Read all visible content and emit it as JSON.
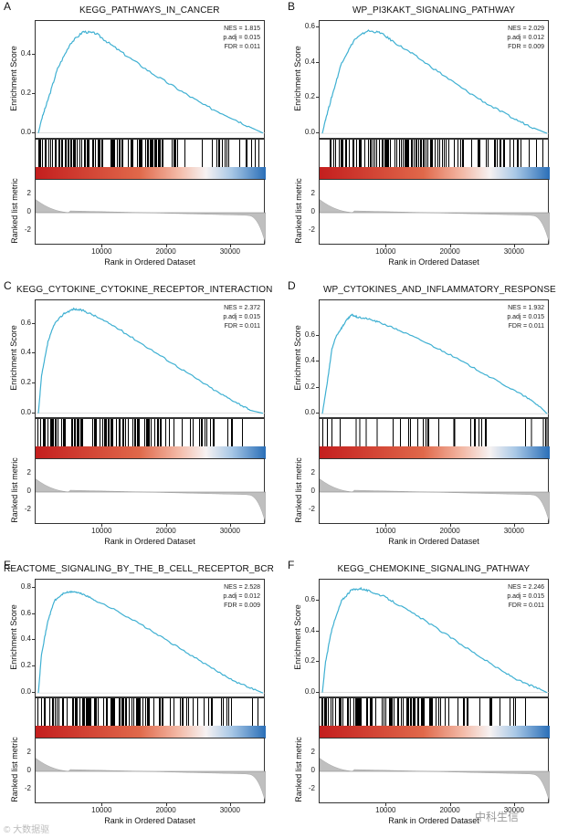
{
  "chart_data": [
    {
      "type": "line",
      "panel": "A",
      "title": "KEGG_PATHWAYS_IN_CANCER",
      "ylabel": "Enrichment Score",
      "ylabel2": "Ranked list metric",
      "xlabel": "Rank in Ordered Dataset",
      "yticks": [
        "0.0",
        "0.2",
        "0.4"
      ],
      "ylim": [
        -0.02,
        0.56
      ],
      "metric_ticks": [
        "2",
        "0",
        "-2"
      ],
      "xticks": [
        "10000",
        "20000",
        "30000"
      ],
      "xlim": [
        0,
        35000
      ],
      "stats": {
        "nes": "NES = 1.815",
        "padj": "p.adj = 0.015",
        "fdr": "FDR = 0.011"
      },
      "x": [
        0,
        500,
        1500,
        3000,
        5000,
        7000,
        9000,
        11000,
        14000,
        18000,
        22000,
        26000,
        30000,
        33000,
        35000
      ],
      "values": [
        0.0,
        0.07,
        0.17,
        0.33,
        0.46,
        0.52,
        0.51,
        0.46,
        0.39,
        0.3,
        0.22,
        0.14,
        0.08,
        0.03,
        0.0
      ],
      "hit_density": 0.75,
      "series_color": "#3fb0d2"
    },
    {
      "type": "line",
      "panel": "B",
      "title": "WP_PI3KAKT_SIGNALING_PATHWAY",
      "ylabel": "Enrichment Score",
      "ylabel2": "Ranked list metric",
      "xlabel": "Rank in Ordered Dataset",
      "yticks": [
        "0.0",
        "0.2",
        "0.4",
        "0.6"
      ],
      "ylim": [
        -0.02,
        0.62
      ],
      "metric_ticks": [
        "2",
        "0",
        "-2"
      ],
      "xticks": [
        "10000",
        "20000",
        "30000"
      ],
      "xlim": [
        0,
        35000
      ],
      "stats": {
        "nes": "NES = 2.029",
        "padj": "p.adj = 0.012",
        "fdr": "FDR = 0.009"
      },
      "x": [
        0,
        500,
        1500,
        3000,
        5000,
        7000,
        9000,
        11000,
        14000,
        18000,
        22000,
        26000,
        30000,
        33000,
        35000
      ],
      "values": [
        0.0,
        0.08,
        0.21,
        0.4,
        0.53,
        0.58,
        0.57,
        0.52,
        0.45,
        0.35,
        0.25,
        0.16,
        0.08,
        0.03,
        0.0
      ],
      "hit_density": 0.72,
      "series_color": "#3fb0d2"
    },
    {
      "type": "line",
      "panel": "C",
      "title": "KEGG_CYTOKINE_CYTOKINE_RECEPTOR_INTERACTION",
      "ylabel": "Enrichment Score",
      "ylabel2": "Ranked list metric",
      "xlabel": "Rank in Ordered Dataset",
      "yticks": [
        "0.0",
        "0.2",
        "0.4",
        "0.6"
      ],
      "ylim": [
        -0.02,
        0.74
      ],
      "metric_ticks": [
        "2",
        "0",
        "-2"
      ],
      "xticks": [
        "10000",
        "20000",
        "30000"
      ],
      "xlim": [
        0,
        35000
      ],
      "stats": {
        "nes": "NES = 2.372",
        "padj": "p.adj = 0.015",
        "fdr": "FDR = 0.011"
      },
      "x": [
        0,
        500,
        1500,
        2500,
        4000,
        5500,
        7000,
        9000,
        12000,
        16000,
        20000,
        24000,
        28000,
        31000,
        33000,
        35000
      ],
      "values": [
        0.0,
        0.25,
        0.48,
        0.6,
        0.67,
        0.7,
        0.69,
        0.65,
        0.58,
        0.47,
        0.36,
        0.25,
        0.14,
        0.07,
        0.02,
        0.0
      ],
      "hit_density": 0.7,
      "series_color": "#3fb0d2"
    },
    {
      "type": "line",
      "panel": "D",
      "title": "WP_CYTOKINES_AND_INFLAMMATORY_RESPONSE",
      "ylabel": "Enrichment Score",
      "ylabel2": "Ranked list metric",
      "xlabel": "Rank in Ordered Dataset",
      "yticks": [
        "0.0",
        "0.2",
        "0.4",
        "0.6"
      ],
      "ylim": [
        -0.02,
        0.85
      ],
      "metric_ticks": [
        "2",
        "0",
        "-2"
      ],
      "xticks": [
        "10000",
        "20000",
        "30000"
      ],
      "xlim": [
        0,
        35000
      ],
      "stats": {
        "nes": "NES = 1.932",
        "padj": "p.adj = 0.015",
        "fdr": "FDR = 0.011"
      },
      "x": [
        0,
        800,
        1500,
        2200,
        3000,
        3800,
        4600,
        5500,
        7000,
        9000,
        12000,
        16000,
        20000,
        24000,
        28000,
        32000,
        34000,
        35000
      ],
      "values": [
        0.0,
        0.25,
        0.5,
        0.6,
        0.66,
        0.72,
        0.76,
        0.74,
        0.73,
        0.7,
        0.64,
        0.55,
        0.45,
        0.34,
        0.23,
        0.12,
        0.05,
        0.0
      ],
      "hit_density": 0.2,
      "series_color": "#3fb0d2"
    },
    {
      "type": "line",
      "panel": "E",
      "title": "REACTOME_SIGNALING_BY_THE_B_CELL_RECEPTOR_BCR",
      "ylabel": "Enrichment Score",
      "ylabel2": "Ranked list metric",
      "xlabel": "Rank in Ordered Dataset",
      "yticks": [
        "0.0",
        "0.2",
        "0.4",
        "0.6",
        "0.8"
      ],
      "ylim": [
        -0.02,
        0.84
      ],
      "metric_ticks": [
        "2",
        "0",
        "-2"
      ],
      "xticks": [
        "10000",
        "20000",
        "30000"
      ],
      "xlim": [
        0,
        35000
      ],
      "stats": {
        "nes": "NES = 2.528",
        "padj": "p.adj = 0.012",
        "fdr": "FDR = 0.009"
      },
      "x": [
        0,
        500,
        1500,
        2500,
        4000,
        5500,
        7000,
        9000,
        12000,
        16000,
        20000,
        24000,
        28000,
        31000,
        34000,
        35000
      ],
      "values": [
        0.0,
        0.3,
        0.55,
        0.7,
        0.76,
        0.77,
        0.75,
        0.7,
        0.63,
        0.52,
        0.4,
        0.28,
        0.16,
        0.08,
        0.02,
        0.0
      ],
      "hit_density": 0.72,
      "series_color": "#3fb0d2"
    },
    {
      "type": "line",
      "panel": "F",
      "title": "KEGG_CHEMOKINE_SIGNALING_PATHWAY",
      "ylabel": "Enrichment Score",
      "ylabel2": "Ranked list metric",
      "xlabel": "Rank in Ordered Dataset",
      "yticks": [
        "0.0",
        "0.2",
        "0.4",
        "0.6"
      ],
      "ylim": [
        -0.02,
        0.72
      ],
      "metric_ticks": [
        "2",
        "0",
        "-2"
      ],
      "xticks": [
        "10000",
        "20000",
        "30000"
      ],
      "xlim": [
        0,
        35000
      ],
      "stats": {
        "nes": "NES = 2.246",
        "padj": "p.adj = 0.015",
        "fdr": "FDR = 0.011"
      },
      "x": [
        0,
        500,
        1500,
        3000,
        4500,
        6000,
        7500,
        9500,
        12000,
        16000,
        20000,
        24000,
        28000,
        31000,
        34000,
        35000
      ],
      "values": [
        0.0,
        0.2,
        0.42,
        0.6,
        0.67,
        0.68,
        0.66,
        0.63,
        0.57,
        0.47,
        0.36,
        0.25,
        0.14,
        0.07,
        0.02,
        0.0
      ],
      "hit_density": 0.72,
      "series_color": "#3fb0d2"
    }
  ],
  "watermarks": {
    "left": "© 大数据驱",
    "right": "中科生信"
  }
}
